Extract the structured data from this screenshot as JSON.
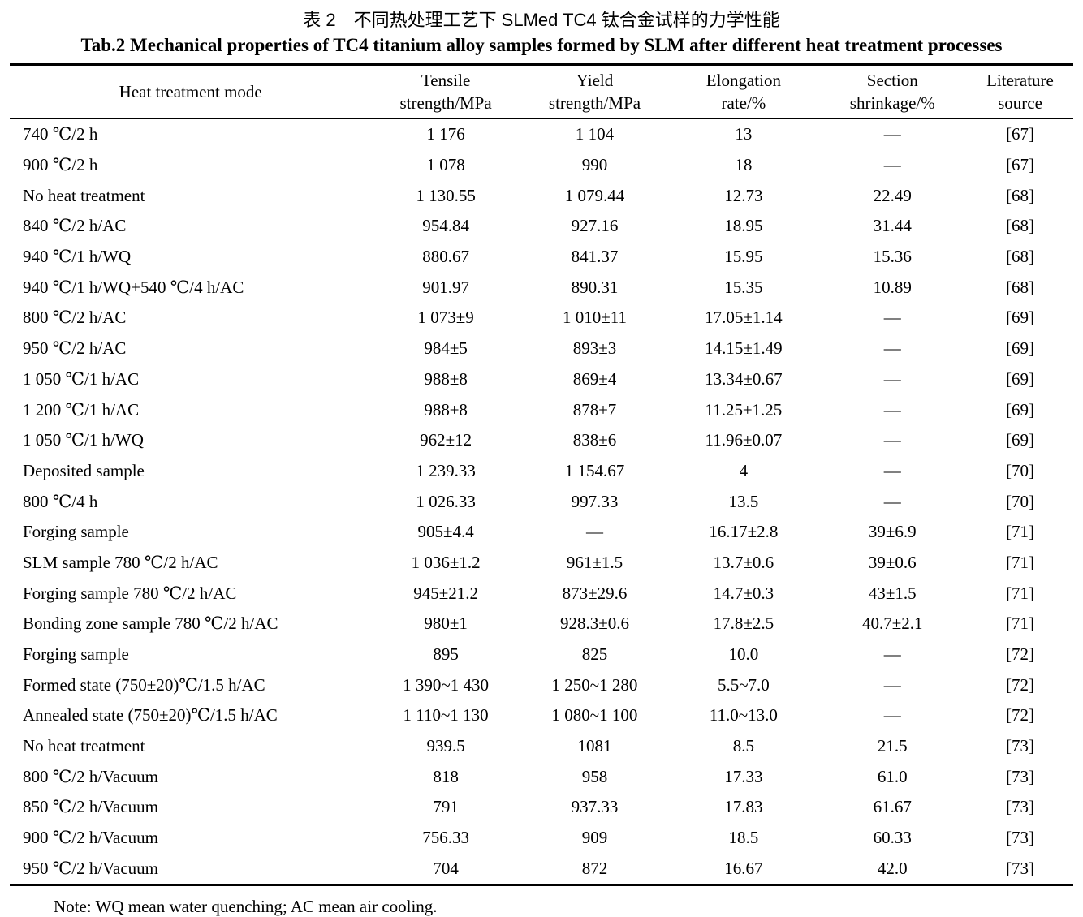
{
  "table": {
    "title_zh": "表 2　不同热处理工艺下 SLMed TC4 钛合金试样的力学性能",
    "title_en": "Tab.2 Mechanical properties of TC4 titanium alloy samples formed by SLM after different heat treatment processes",
    "headers": [
      [
        "Heat treatment mode"
      ],
      [
        "Tensile",
        "strength/MPa"
      ],
      [
        "Yield",
        "strength/MPa"
      ],
      [
        "Elongation",
        "rate/%"
      ],
      [
        "Section",
        "shrinkage/%"
      ],
      [
        "Literature",
        "source"
      ]
    ],
    "rows": [
      [
        "740 ℃/2 h",
        "1 176",
        "1 104",
        "13",
        "—",
        "[67]"
      ],
      [
        "900 ℃/2 h",
        "1 078",
        "990",
        "18",
        "—",
        "[67]"
      ],
      [
        "No heat treatment",
        "1 130.55",
        "1 079.44",
        "12.73",
        "22.49",
        "[68]"
      ],
      [
        "840 ℃/2 h/AC",
        "954.84",
        "927.16",
        "18.95",
        "31.44",
        "[68]"
      ],
      [
        "940 ℃/1 h/WQ",
        "880.67",
        "841.37",
        "15.95",
        "15.36",
        "[68]"
      ],
      [
        "940 ℃/1 h/WQ+540 ℃/4 h/AC",
        "901.97",
        "890.31",
        "15.35",
        "10.89",
        "[68]"
      ],
      [
        "800 ℃/2 h/AC",
        "1 073±9",
        "1 010±11",
        "17.05±1.14",
        "—",
        "[69]"
      ],
      [
        "950 ℃/2 h/AC",
        "984±5",
        "893±3",
        "14.15±1.49",
        "—",
        "[69]"
      ],
      [
        "1 050 ℃/1 h/AC",
        "988±8",
        "869±4",
        "13.34±0.67",
        "—",
        "[69]"
      ],
      [
        "1 200 ℃/1 h/AC",
        "988±8",
        "878±7",
        "11.25±1.25",
        "—",
        "[69]"
      ],
      [
        "1 050 ℃/1 h/WQ",
        "962±12",
        "838±6",
        "11.96±0.07",
        "—",
        "[69]"
      ],
      [
        "Deposited sample",
        "1 239.33",
        "1 154.67",
        "4",
        "—",
        "[70]"
      ],
      [
        "800 ℃/4 h",
        "1 026.33",
        "997.33",
        "13.5",
        "—",
        "[70]"
      ],
      [
        "Forging sample",
        "905±4.4",
        "—",
        "16.17±2.8",
        "39±6.9",
        "[71]"
      ],
      [
        "SLM sample 780 ℃/2 h/AC",
        "1 036±1.2",
        "961±1.5",
        "13.7±0.6",
        "39±0.6",
        "[71]"
      ],
      [
        "Forging sample 780 ℃/2 h/AC",
        "945±21.2",
        "873±29.6",
        "14.7±0.3",
        "43±1.5",
        "[71]"
      ],
      [
        "Bonding zone sample 780 ℃/2 h/AC",
        "980±1",
        "928.3±0.6",
        "17.8±2.5",
        "40.7±2.1",
        "[71]"
      ],
      [
        "Forging sample",
        "895",
        "825",
        "10.0",
        "—",
        "[72]"
      ],
      [
        "Formed state (750±20)℃/1.5 h/AC",
        "1 390~1 430",
        "1 250~1 280",
        "5.5~7.0",
        "—",
        "[72]"
      ],
      [
        "Annealed state (750±20)℃/1.5 h/AC",
        "1 110~1 130",
        "1 080~1 100",
        "11.0~13.0",
        "—",
        "[72]"
      ],
      [
        "No heat treatment",
        "939.5",
        "1081",
        "8.5",
        "21.5",
        "[73]"
      ],
      [
        "800 ℃/2 h/Vacuum",
        "818",
        "958",
        "17.33",
        "61.0",
        "[73]"
      ],
      [
        "850 ℃/2 h/Vacuum",
        "791",
        "937.33",
        "17.83",
        "61.67",
        "[73]"
      ],
      [
        "900 ℃/2 h/Vacuum",
        "756.33",
        "909",
        "18.5",
        "60.33",
        "[73]"
      ],
      [
        "950 ℃/2 h/Vacuum",
        "704",
        "872",
        "16.67",
        "42.0",
        "[73]"
      ]
    ],
    "note": "Note: WQ mean water quenching; AC mean air cooling."
  }
}
